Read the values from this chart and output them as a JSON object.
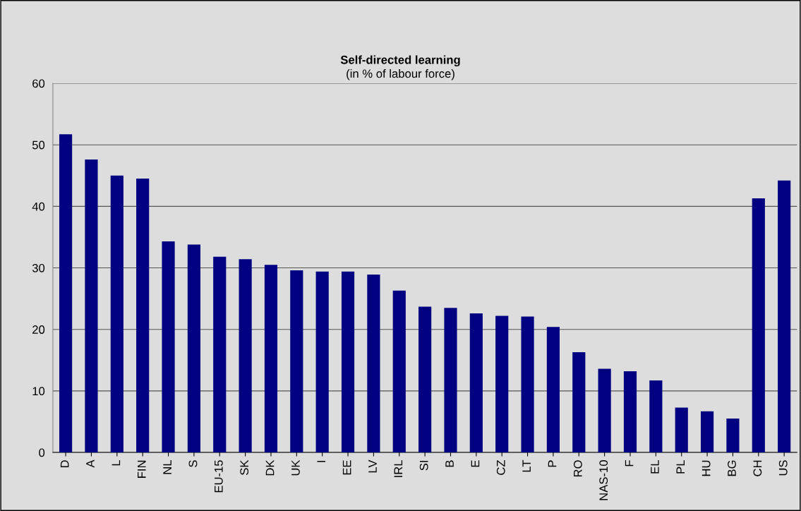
{
  "chart_data": {
    "type": "bar",
    "title": "Self-directed learning",
    "subtitle": "(in % of labour force)",
    "categories": [
      "D",
      "A",
      "L",
      "FIN",
      "NL",
      "S",
      "EU-15",
      "SK",
      "DK",
      "UK",
      "I",
      "EE",
      "LV",
      "IRL",
      "SI",
      "B",
      "E",
      "CZ",
      "LT",
      "P",
      "RO",
      "NAS-10",
      "F",
      "EL",
      "PL",
      "HU",
      "BG",
      "CH",
      "US"
    ],
    "values": [
      51.7,
      47.6,
      45.0,
      44.5,
      34.3,
      33.8,
      31.8,
      31.4,
      30.5,
      29.6,
      29.4,
      29.4,
      28.9,
      26.3,
      23.7,
      23.5,
      22.6,
      22.2,
      22.1,
      20.4,
      16.3,
      13.6,
      13.2,
      11.7,
      7.3,
      6.7,
      5.5,
      41.3,
      44.2
    ],
    "color": "#000080",
    "ylim": [
      0,
      60
    ],
    "yticks": [
      0,
      10,
      20,
      30,
      40,
      50,
      60
    ],
    "grid": "y",
    "legend": false
  }
}
